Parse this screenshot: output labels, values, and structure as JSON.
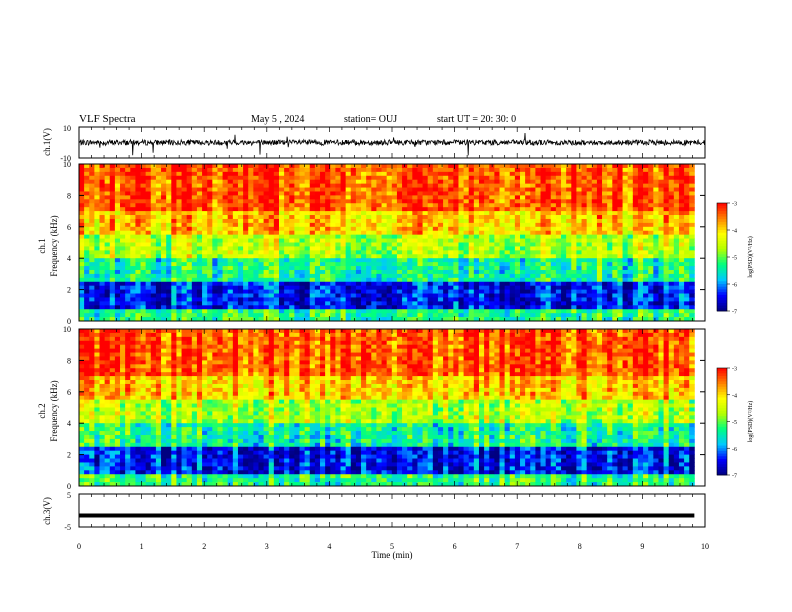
{
  "header": {
    "title": "VLF Spectra",
    "date": "May 5 , 2024",
    "station": "station= OUJ",
    "start": "start UT = 20: 30: 0"
  },
  "chart_data": [
    {
      "type": "line",
      "name": "ch1-waveform",
      "ylabel": "ch.1(V)",
      "ylim": [
        -10,
        10
      ],
      "yticks": [
        "10",
        "-10"
      ],
      "xlim": [
        0,
        10
      ],
      "baseline": 0
    },
    {
      "type": "heatmap",
      "name": "ch1-spectrogram",
      "ylabel": "ch.1",
      "ylabel2": "Frequency (kHz)",
      "ylim": [
        0,
        10
      ],
      "yticks": [
        "0",
        "2",
        "4",
        "6",
        "8",
        "10"
      ],
      "xlim": [
        0,
        9.83
      ],
      "colorbar": {
        "label": "log(PSD)(V²/Hz)",
        "range": [
          -7,
          -3
        ],
        "ticks": [
          "-3",
          "-4",
          "-5",
          "-6",
          "-7"
        ],
        "colors": [
          "#000080",
          "#0000ff",
          "#00c8ff",
          "#00ff80",
          "#b4ff00",
          "#ffff00",
          "#ff8000",
          "#ff0000"
        ]
      }
    },
    {
      "type": "heatmap",
      "name": "ch2-spectrogram",
      "ylabel": "ch.2",
      "ylabel2": "Frequency (kHz)",
      "ylim": [
        0,
        10
      ],
      "yticks": [
        "0",
        "2",
        "4",
        "6",
        "8",
        "10"
      ],
      "xlim": [
        0,
        9.83
      ],
      "colorbar": {
        "label": "log(PSD)(V²/Hz)",
        "range": [
          -7,
          -3
        ],
        "ticks": [
          "-3",
          "-4",
          "-5",
          "-6",
          "-7"
        ],
        "colors": [
          "#000080",
          "#0000ff",
          "#00c8ff",
          "#00ff80",
          "#b4ff00",
          "#ffff00",
          "#ff8000",
          "#ff0000"
        ]
      }
    },
    {
      "type": "line",
      "name": "ch3-waveform",
      "ylabel": "ch.3(V)",
      "ylim": [
        -5,
        5
      ],
      "yticks": [
        "5",
        "-5"
      ],
      "xlim": [
        0,
        9.83
      ],
      "baseline": -1.5
    }
  ],
  "xaxis": {
    "label": "Time (min)",
    "ticks": [
      "0",
      "1",
      "2",
      "3",
      "4",
      "5",
      "6",
      "7",
      "8",
      "9",
      "10"
    ],
    "range": [
      0,
      10
    ]
  }
}
